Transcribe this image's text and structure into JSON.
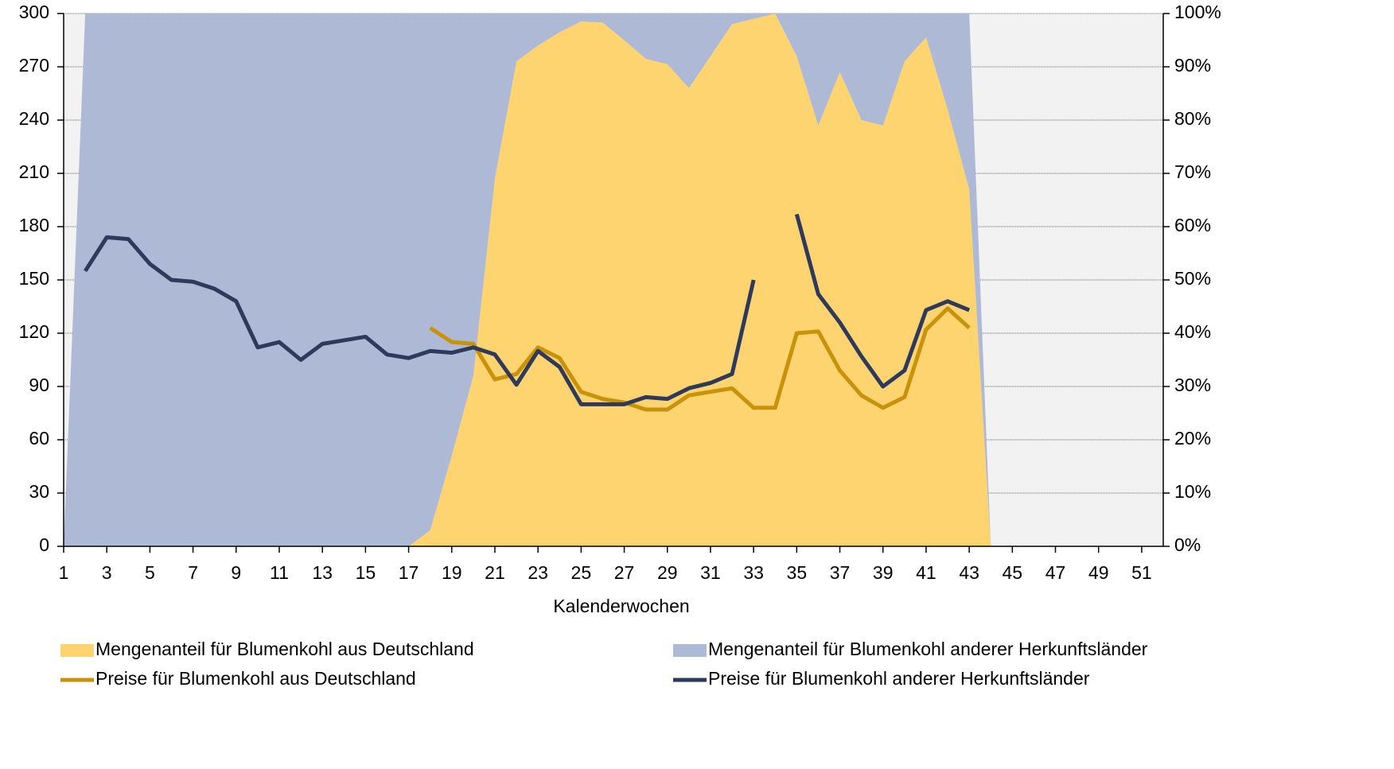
{
  "chart_data": {
    "type": "area-line",
    "x_label": "Kalenderwochen",
    "x": [
      1,
      2,
      3,
      4,
      5,
      6,
      7,
      8,
      9,
      10,
      11,
      12,
      13,
      14,
      15,
      16,
      17,
      18,
      19,
      20,
      21,
      22,
      23,
      24,
      25,
      26,
      27,
      28,
      29,
      30,
      31,
      32,
      33,
      34,
      35,
      36,
      37,
      38,
      39,
      40,
      41,
      42,
      43,
      44
    ],
    "xlim": [
      1,
      52
    ],
    "xticks": [
      1,
      3,
      5,
      7,
      9,
      11,
      13,
      15,
      17,
      19,
      21,
      23,
      25,
      27,
      29,
      31,
      33,
      35,
      37,
      39,
      41,
      43,
      45,
      47,
      49,
      51
    ],
    "ylim": [
      0,
      300
    ],
    "yticks": [
      0,
      30,
      60,
      90,
      120,
      150,
      180,
      210,
      240,
      270,
      300
    ],
    "y2lim": [
      0,
      100
    ],
    "y2ticks": [
      {
        "value": 0,
        "label": "0%"
      },
      {
        "value": 10,
        "label": "10%"
      },
      {
        "value": 20,
        "label": "20%"
      },
      {
        "value": 30,
        "label": "30%"
      },
      {
        "value": 40,
        "label": "40%"
      },
      {
        "value": 50,
        "label": "50%"
      },
      {
        "value": 60,
        "label": "60%"
      },
      {
        "value": 70,
        "label": "70%"
      },
      {
        "value": 80,
        "label": "80%"
      },
      {
        "value": 90,
        "label": "90%"
      },
      {
        "value": 100,
        "label": "100%"
      }
    ],
    "grid": true,
    "background": "#f2f2f2",
    "series": [
      {
        "name": "Mengenanteil für Blumenkohl aus Deutschland",
        "kind": "area",
        "axis": "y2",
        "color": "#fdd46f",
        "values": [
          0,
          0,
          0,
          0,
          0,
          0,
          0,
          0,
          0,
          0,
          0,
          0,
          0,
          0,
          0,
          0,
          0,
          3,
          17,
          32,
          69,
          91,
          94,
          96.5,
          98.5,
          98.3,
          95,
          91.5,
          90.5,
          86,
          92,
          98,
          99,
          100,
          92,
          79,
          89,
          80,
          79,
          91,
          95.5,
          82,
          67,
          0
        ]
      },
      {
        "name": "Mengenanteil für Blumenkohl anderer Herkunftsländer",
        "kind": "area",
        "axis": "y2",
        "color": "#aeb9d6",
        "values": [
          0,
          100,
          100,
          100,
          100,
          100,
          100,
          100,
          100,
          100,
          100,
          100,
          100,
          100,
          100,
          100,
          100,
          97,
          83,
          68,
          31,
          9,
          6,
          3.5,
          1.5,
          1.7,
          5,
          8.5,
          9.5,
          14,
          8,
          2,
          1,
          0,
          8,
          21,
          11,
          20,
          21,
          9,
          4.5,
          18,
          33,
          0
        ]
      },
      {
        "name": "Preise für Blumenkohl aus Deutschland",
        "kind": "line",
        "color": "#c8920a",
        "values": [
          null,
          null,
          null,
          null,
          null,
          null,
          null,
          null,
          null,
          null,
          null,
          null,
          null,
          null,
          null,
          null,
          null,
          123,
          115,
          114,
          94,
          97,
          112,
          106,
          87,
          83,
          81,
          77,
          77,
          85,
          87,
          89,
          78,
          78,
          120,
          121,
          99,
          85,
          78,
          84,
          122,
          134,
          123,
          null
        ]
      },
      {
        "name": "Preise für Blumenkohl anderer Herkunftsländer",
        "kind": "line",
        "color": "#2e3a5c",
        "values": [
          null,
          155,
          174,
          173,
          159,
          150,
          149,
          145,
          138,
          112,
          115,
          105,
          114,
          116,
          118,
          108,
          106,
          110,
          109,
          112,
          108,
          91,
          110,
          101,
          80,
          80,
          80,
          84,
          83,
          89,
          92,
          97,
          150,
          null,
          187,
          142,
          126,
          107,
          90,
          99,
          133,
          138,
          133,
          null
        ]
      }
    ]
  }
}
